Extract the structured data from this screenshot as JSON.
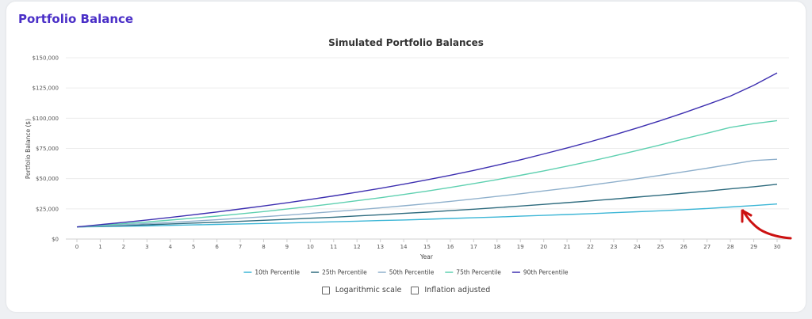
{
  "card": {
    "title": "Portfolio Balance"
  },
  "controls": [
    {
      "label": "Logarithmic scale",
      "checked": false
    },
    {
      "label": "Inflation adjusted",
      "checked": false
    }
  ],
  "colors": {
    "title": "#4a2fc7",
    "annotation": "#cc1111"
  },
  "chart_data": {
    "type": "line",
    "title": "Simulated Portfolio Balances",
    "xlabel": "Year",
    "ylabel": "Portfolio Balance ($)",
    "xlim": [
      0,
      30
    ],
    "ylim": [
      0,
      150000
    ],
    "yticks": [
      0,
      25000,
      50000,
      75000,
      100000,
      125000,
      150000
    ],
    "ytick_labels": [
      "$0",
      "$25,000",
      "$50,000",
      "$75,000",
      "$100,000",
      "$125,000",
      "$150,000"
    ],
    "x": [
      0,
      1,
      2,
      3,
      4,
      5,
      6,
      7,
      8,
      9,
      10,
      11,
      12,
      13,
      14,
      15,
      16,
      17,
      18,
      19,
      20,
      21,
      22,
      23,
      24,
      25,
      26,
      27,
      28,
      29,
      30
    ],
    "grid": true,
    "legend_position": "bottom",
    "series": [
      {
        "name": "10th Percentile",
        "color": "#3cb6d6",
        "values": [
          10000,
          10300,
          10600,
          10900,
          11300,
          11700,
          12100,
          12500,
          12900,
          13300,
          13800,
          14300,
          14800,
          15300,
          15800,
          16400,
          17000,
          17600,
          18200,
          18900,
          19600,
          20300,
          21000,
          21800,
          22600,
          23400,
          24300,
          25300,
          26500,
          27700,
          29000
        ]
      },
      {
        "name": "25th Percentile",
        "color": "#2e6b7e",
        "values": [
          10000,
          10600,
          11200,
          11800,
          12500,
          13200,
          13900,
          14700,
          15500,
          16300,
          17200,
          18100,
          19100,
          20100,
          21200,
          22300,
          23500,
          24700,
          26000,
          27300,
          28700,
          30100,
          31600,
          33100,
          34700,
          36300,
          38000,
          39700,
          41500,
          43300,
          45300
        ]
      },
      {
        "name": "50th Percentile",
        "color": "#8fb0cc",
        "values": [
          10000,
          10900,
          11800,
          12800,
          13800,
          14900,
          16000,
          17200,
          18500,
          19800,
          21200,
          22700,
          24200,
          25800,
          27500,
          29300,
          31200,
          33200,
          35300,
          37500,
          39800,
          42100,
          44600,
          47200,
          49900,
          52700,
          55600,
          58600,
          61800,
          65000,
          66000
        ]
      },
      {
        "name": "75th Percentile",
        "color": "#5ed0b0",
        "values": [
          10000,
          11300,
          12700,
          14100,
          15700,
          17300,
          19000,
          20800,
          22700,
          24800,
          27000,
          29300,
          31700,
          34200,
          36900,
          39700,
          42700,
          45900,
          49200,
          52700,
          56400,
          60300,
          64400,
          68700,
          73200,
          77900,
          82900,
          87600,
          92400,
          95500,
          98000
        ]
      },
      {
        "name": "90th Percentile",
        "color": "#3d2fb0",
        "values": [
          10000,
          11900,
          13800,
          15800,
          17900,
          20100,
          22400,
          24900,
          27400,
          30000,
          32800,
          35700,
          38800,
          42000,
          45400,
          49000,
          52800,
          56800,
          61100,
          65600,
          70400,
          75400,
          80600,
          86100,
          91900,
          98000,
          104400,
          111200,
          118300,
          127300,
          137500
        ]
      }
    ]
  }
}
